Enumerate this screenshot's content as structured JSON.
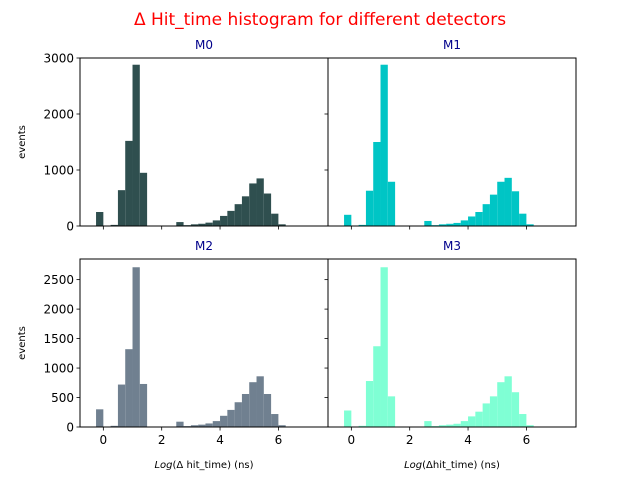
{
  "figure": {
    "suptitle": "Δ Hit_time histogram for different detectors",
    "title_color": "#ff0000",
    "subtitle_color": "#00008b",
    "ylabel": "events"
  },
  "chart_data": [
    {
      "type": "bar",
      "title": "M0",
      "color": "#2f4f4f",
      "xlabel": "",
      "ylabel": "events",
      "xlim": [
        -0.8,
        7.7
      ],
      "ylim": [
        0,
        3000
      ],
      "xticks": [
        0,
        2,
        4,
        6
      ],
      "yticks": [
        0,
        1000,
        2000,
        3000
      ],
      "bin_width": 0.25,
      "x": [
        -0.125,
        0.375,
        0.625,
        0.875,
        1.125,
        1.375,
        2.625,
        2.875,
        3.125,
        3.375,
        3.625,
        3.875,
        4.125,
        4.375,
        4.625,
        4.875,
        5.125,
        5.375,
        5.625,
        5.875,
        6.125
      ],
      "values": [
        250,
        20,
        640,
        1520,
        2880,
        950,
        70,
        15,
        30,
        40,
        60,
        100,
        180,
        270,
        390,
        530,
        760,
        850,
        580,
        220,
        30
      ]
    },
    {
      "type": "bar",
      "title": "M1",
      "color": "#00c5c5",
      "xlabel": "",
      "ylabel": "",
      "xlim": [
        -0.8,
        7.7
      ],
      "ylim": [
        0,
        3000
      ],
      "xticks": [
        0,
        2,
        4,
        6
      ],
      "yticks": [
        0,
        1000,
        2000,
        3000
      ],
      "bin_width": 0.25,
      "x": [
        -0.125,
        0.375,
        0.625,
        0.875,
        1.125,
        1.375,
        2.625,
        2.875,
        3.125,
        3.375,
        3.625,
        3.875,
        4.125,
        4.375,
        4.625,
        4.875,
        5.125,
        5.375,
        5.625,
        5.875,
        6.125
      ],
      "values": [
        200,
        20,
        630,
        1500,
        2880,
        790,
        90,
        15,
        30,
        40,
        55,
        100,
        170,
        250,
        390,
        560,
        790,
        860,
        620,
        220,
        30
      ]
    },
    {
      "type": "bar",
      "title": "M2",
      "color": "#708090",
      "xlabel": "Log(Δ hit_time) (ns)",
      "ylabel": "events",
      "xlim": [
        -0.8,
        7.7
      ],
      "ylim": [
        0,
        2850
      ],
      "xticks": [
        0,
        2,
        4,
        6
      ],
      "yticks": [
        0,
        500,
        1000,
        1500,
        2000,
        2500
      ],
      "bin_width": 0.25,
      "x": [
        -0.125,
        0.375,
        0.625,
        0.875,
        1.125,
        1.375,
        2.625,
        2.875,
        3.125,
        3.375,
        3.625,
        3.875,
        4.125,
        4.375,
        4.625,
        4.875,
        5.125,
        5.375,
        5.625,
        5.875,
        6.125
      ],
      "values": [
        300,
        20,
        720,
        1320,
        2710,
        730,
        90,
        15,
        30,
        40,
        60,
        100,
        190,
        290,
        420,
        560,
        760,
        860,
        560,
        220,
        30
      ]
    },
    {
      "type": "bar",
      "title": "M3",
      "color": "#7fffd4",
      "xlabel": "Log(Δhit_time) (ns)",
      "ylabel": "",
      "xlim": [
        -0.8,
        7.7
      ],
      "ylim": [
        0,
        2850
      ],
      "xticks": [
        0,
        2,
        4,
        6
      ],
      "yticks": [
        0,
        500,
        1000,
        1500,
        2000,
        2500
      ],
      "bin_width": 0.25,
      "x": [
        -0.125,
        0.375,
        0.625,
        0.875,
        1.125,
        1.375,
        2.625,
        2.875,
        3.125,
        3.375,
        3.625,
        3.875,
        4.125,
        4.375,
        4.625,
        4.875,
        5.125,
        5.375,
        5.625,
        5.875,
        6.125
      ],
      "values": [
        280,
        20,
        780,
        1370,
        2710,
        520,
        100,
        15,
        30,
        40,
        55,
        100,
        180,
        260,
        400,
        520,
        760,
        860,
        590,
        220,
        30
      ]
    }
  ]
}
